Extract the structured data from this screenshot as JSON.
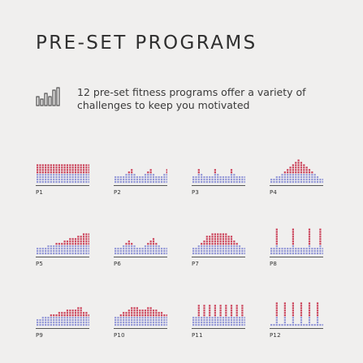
{
  "header": {
    "title": "PRE-SET PROGRAMS"
  },
  "description": {
    "icon": "bar-chart-icon",
    "text": "12 pre-set fitness programs offer a variety of challenges to keep you motivated"
  },
  "colors": {
    "low": "#8f94d6",
    "high": "#c8364f",
    "background": "#f0efee"
  },
  "programs": [
    {
      "label": "P1",
      "levels": [
        8,
        8,
        8,
        8,
        8,
        8,
        8,
        8,
        8,
        8,
        8,
        8,
        8,
        8,
        8,
        8,
        8,
        8,
        8,
        8
      ]
    },
    {
      "label": "P2",
      "levels": [
        3,
        3,
        3,
        3,
        4,
        5,
        6,
        4,
        3,
        3,
        3,
        4,
        5,
        6,
        4,
        3,
        3,
        3,
        4,
        6
      ]
    },
    {
      "label": "P3",
      "levels": [
        3,
        3,
        6,
        4,
        3,
        3,
        3,
        3,
        6,
        4,
        3,
        3,
        3,
        3,
        6,
        4,
        3,
        3,
        3,
        3
      ]
    },
    {
      "label": "P4",
      "levels": [
        2,
        2,
        3,
        3,
        4,
        5,
        6,
        7,
        8,
        9,
        10,
        9,
        8,
        7,
        6,
        5,
        4,
        3,
        2,
        2
      ]
    },
    {
      "label": "P5",
      "levels": [
        3,
        3,
        3,
        3,
        4,
        4,
        4,
        5,
        5,
        5,
        6,
        6,
        7,
        7,
        7,
        8,
        8,
        9,
        9,
        9
      ]
    },
    {
      "label": "P6",
      "levels": [
        3,
        3,
        3,
        4,
        5,
        6,
        5,
        4,
        3,
        3,
        3,
        4,
        5,
        6,
        7,
        5,
        4,
        3,
        3,
        3
      ]
    },
    {
      "label": "P7",
      "levels": [
        3,
        3,
        4,
        5,
        6,
        8,
        8,
        9,
        9,
        9,
        9,
        9,
        9,
        8,
        8,
        6,
        5,
        4,
        3,
        3
      ]
    },
    {
      "label": "P8",
      "levels": [
        3,
        3,
        11,
        3,
        3,
        3,
        3,
        3,
        11,
        3,
        3,
        3,
        3,
        3,
        11,
        3,
        3,
        3,
        11,
        3
      ]
    },
    {
      "label": "P9",
      "levels": [
        3,
        3,
        4,
        4,
        4,
        5,
        5,
        5,
        6,
        6,
        6,
        7,
        7,
        7,
        7,
        8,
        8,
        6,
        6,
        5
      ]
    },
    {
      "label": "P10",
      "levels": [
        4,
        4,
        5,
        6,
        6,
        7,
        8,
        8,
        8,
        7,
        7,
        7,
        8,
        8,
        7,
        7,
        6,
        6,
        5,
        5
      ]
    },
    {
      "label": "P11",
      "levels": [
        4,
        4,
        9,
        4,
        9,
        4,
        9,
        4,
        9,
        4,
        9,
        4,
        9,
        4,
        9,
        4,
        9,
        4,
        9,
        4
      ]
    },
    {
      "label": "P12",
      "levels": [
        1,
        1,
        10,
        1,
        1,
        10,
        1,
        1,
        10,
        1,
        1,
        10,
        1,
        1,
        10,
        1,
        1,
        10,
        1,
        1
      ]
    }
  ]
}
